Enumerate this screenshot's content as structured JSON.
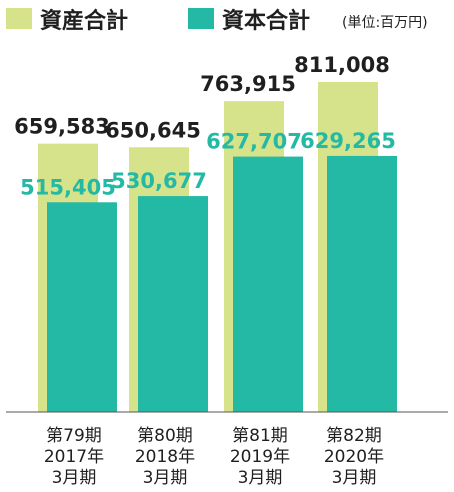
{
  "legend": {
    "total_assets": "資産合計",
    "net_assets": "資本合計",
    "unit": "(単位:百万円)"
  },
  "colors": {
    "total_assets": "#d6e38a",
    "net_assets": "#23b9a4",
    "axis": "#555555"
  },
  "chart_data": {
    "type": "bar",
    "categories": [
      [
        "第79期",
        "2017年",
        "3月期"
      ],
      [
        "第80期",
        "2018年",
        "3月期"
      ],
      [
        "第81期",
        "2019年",
        "3月期"
      ],
      [
        "第82期",
        "2020年",
        "3月期"
      ]
    ],
    "series": [
      {
        "name": "資産合計",
        "values": [
          659583,
          650645,
          763915,
          811008
        ],
        "labels": [
          "659,583",
          "650,645",
          "763,915",
          "811,008"
        ]
      },
      {
        "name": "資本合計",
        "values": [
          515405,
          530677,
          627707,
          629265
        ],
        "labels": [
          "515,405",
          "530,677",
          "627,707",
          "629,265"
        ]
      }
    ],
    "unit": "(単位:百万円)",
    "ylim": [
      0,
      811008
    ],
    "grid": false,
    "legend_position": "top"
  }
}
